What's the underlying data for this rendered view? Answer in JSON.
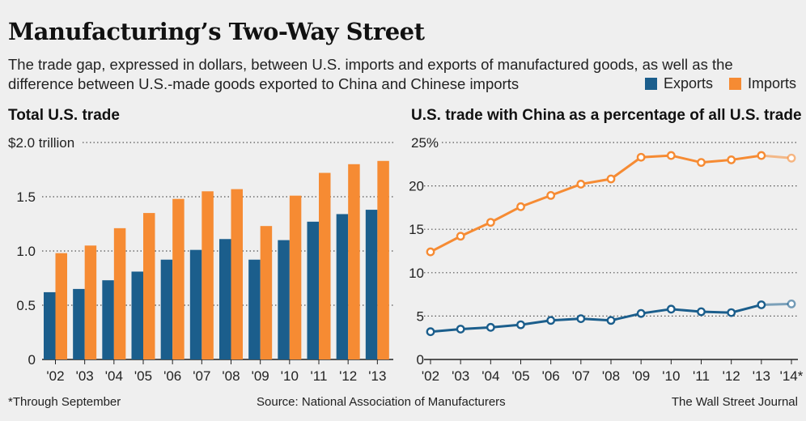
{
  "header": {
    "title": "Manufacturing’s Two-Way Street",
    "subtitle": "The trade gap, expressed in dollars, between U.S. imports and exports of manufactured goods, as well as the difference between U.S.-made goods exported to China and Chinese imports"
  },
  "legend": [
    {
      "label": "Exports",
      "color": "#1b5e8c"
    },
    {
      "label": "Imports",
      "color": "#f68b33"
    }
  ],
  "chart_data": [
    {
      "type": "bar",
      "title": "Total U.S. trade",
      "categories": [
        "'02",
        "'03",
        "'04",
        "'05",
        "'06",
        "'07",
        "'08",
        "'09",
        "'10",
        "'11",
        "'12",
        "'13"
      ],
      "series": [
        {
          "name": "Exports",
          "values": [
            0.62,
            0.65,
            0.73,
            0.81,
            0.92,
            1.01,
            1.11,
            0.92,
            1.1,
            1.27,
            1.34,
            1.38
          ]
        },
        {
          "name": "Imports",
          "values": [
            0.98,
            1.05,
            1.21,
            1.35,
            1.48,
            1.55,
            1.57,
            1.23,
            1.51,
            1.72,
            1.8,
            1.83
          ]
        }
      ],
      "ylim": [
        0,
        2.0
      ],
      "yticks": [
        {
          "value": 0,
          "label": "0"
        },
        {
          "value": 0.5,
          "label": "0.5"
        },
        {
          "value": 1.0,
          "label": "1.0"
        },
        {
          "value": 1.5,
          "label": "1.5"
        },
        {
          "value": 2.0,
          "label": "$2.0 trillion"
        }
      ],
      "grid": true
    },
    {
      "type": "line",
      "title": "U.S. trade with China as a percentage of all U.S. trade",
      "categories": [
        "'02",
        "'03",
        "'04",
        "'05",
        "'06",
        "'07",
        "'08",
        "'09",
        "'10",
        "'11",
        "'12",
        "'13",
        "'14*"
      ],
      "series": [
        {
          "name": "Exports",
          "values": [
            3.2,
            3.5,
            3.7,
            4.0,
            4.5,
            4.7,
            4.5,
            5.3,
            5.8,
            5.5,
            5.4,
            6.3,
            6.4
          ]
        },
        {
          "name": "Imports",
          "values": [
            12.4,
            14.2,
            15.8,
            17.6,
            18.9,
            20.2,
            20.8,
            23.3,
            23.5,
            22.7,
            23.0,
            23.5,
            23.2
          ]
        }
      ],
      "ylim": [
        0,
        25
      ],
      "yticks": [
        {
          "value": 0,
          "label": "0"
        },
        {
          "value": 5,
          "label": "5"
        },
        {
          "value": 10,
          "label": "10"
        },
        {
          "value": 15,
          "label": "15"
        },
        {
          "value": 20,
          "label": "20"
        },
        {
          "value": 25,
          "label": "25%"
        }
      ],
      "grid": true
    }
  ],
  "footer": {
    "note": "*Through September",
    "source": "Source: National Association of Manufacturers",
    "credit": "The Wall Street Journal"
  }
}
